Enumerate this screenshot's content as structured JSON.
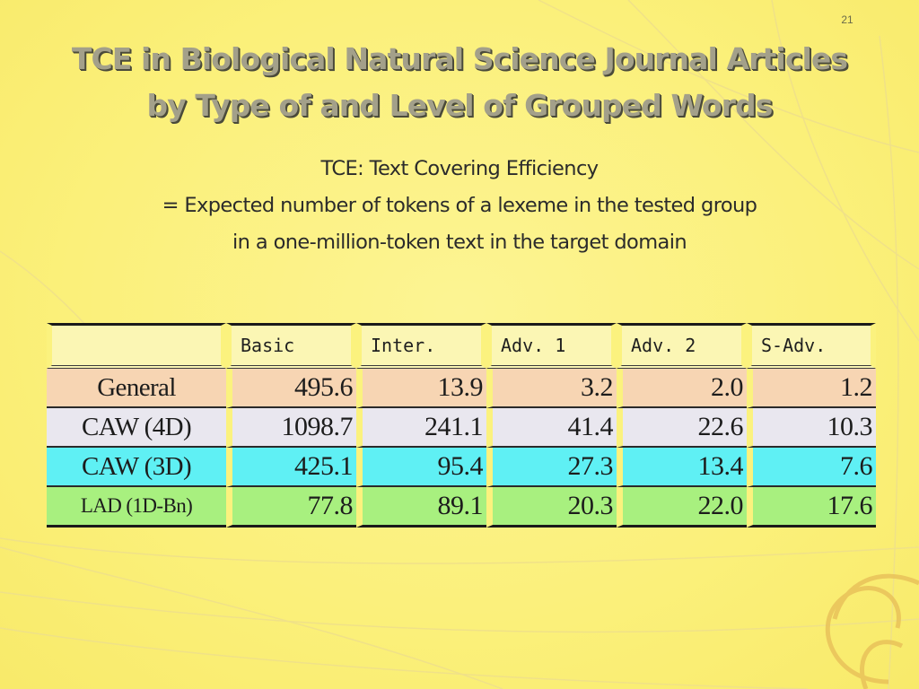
{
  "page_number": "21",
  "title_lines": [
    "TCE in Biological Natural Science Journal Articles",
    "by Type of and Level of Grouped Words"
  ],
  "subtitle_lines": [
    "TCE: Text Covering Efficiency",
    "= Expected number of tokens of a lexeme in the tested group",
    "in a one-million-token text in the target domain"
  ],
  "table": {
    "headers": [
      "",
      "Basic",
      "Inter.",
      "Adv. 1",
      "Adv. 2",
      "S-Adv."
    ],
    "rows": [
      {
        "label": "General",
        "values": [
          "495.6",
          "13.9",
          "3.2",
          "2.0",
          "1.2"
        ],
        "color": "#f7d5b3"
      },
      {
        "label": "CAW (4D)",
        "values": [
          "1098.7",
          "241.1",
          "41.4",
          "22.6",
          "10.3"
        ],
        "color": "#e9e7ef"
      },
      {
        "label": "CAW (3D)",
        "values": [
          "425.1",
          "95.4",
          "27.3",
          "13.4",
          "7.6"
        ],
        "color": "#5ff0f4"
      },
      {
        "label": "LAD (1D-Bn)",
        "values": [
          "77.8",
          "89.1",
          "20.3",
          "22.0",
          "17.6"
        ],
        "color": "#a8f07f"
      }
    ]
  }
}
